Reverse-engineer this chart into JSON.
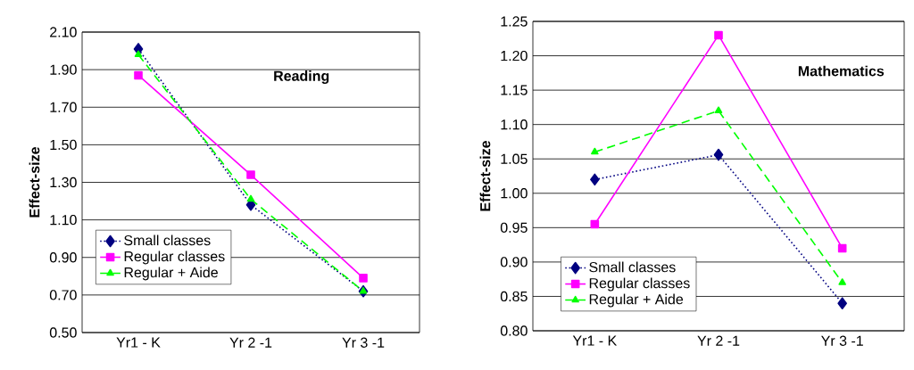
{
  "chart_data": [
    {
      "type": "line",
      "categories": [
        "Yr1 - K",
        "Yr 2 -1",
        "Yr 3 -1"
      ],
      "ylabel": "Effect-size",
      "annotations": [
        "Reading"
      ],
      "series": [
        {
          "name": "Small classes",
          "color": "#000080",
          "values": [
            2.01,
            1.18,
            0.72
          ],
          "marker": "diamond",
          "line_style": "dotted"
        },
        {
          "name": "Regular classes",
          "color": "#ff00ff",
          "values": [
            1.87,
            1.34,
            0.79
          ],
          "marker": "square",
          "line_style": "solid"
        },
        {
          "name": "Regular + Aide",
          "color": "#00ff00",
          "values": [
            1.98,
            1.21,
            0.72
          ],
          "marker": "triangle",
          "line_style": "dashed"
        }
      ],
      "ylim": [
        0.5,
        2.1
      ],
      "yticks": [
        {
          "value": 0.5,
          "label": "0.50"
        },
        {
          "value": 0.7,
          "label": "0.70"
        },
        {
          "value": 0.9,
          "label": "0.90"
        },
        {
          "value": 1.1,
          "label": "1.10"
        },
        {
          "value": 1.3,
          "label": "1.30"
        },
        {
          "value": 1.5,
          "label": "1.50"
        },
        {
          "value": 1.7,
          "label": "1.70"
        },
        {
          "value": 1.9,
          "label": "1.90"
        },
        {
          "value": 2.1,
          "label": "2.10"
        }
      ],
      "grid": "y",
      "legend": "bottom left"
    },
    {
      "type": "line",
      "categories": [
        "Yr1 - K",
        "Yr 2 -1",
        "Yr 3 -1"
      ],
      "ylabel": "Effect-size",
      "annotations": [
        "Mathematics"
      ],
      "series": [
        {
          "name": "Small classes",
          "color": "#000080",
          "values": [
            1.02,
            1.056,
            0.84
          ],
          "marker": "diamond",
          "line_style": "dotted"
        },
        {
          "name": "Regular classes",
          "color": "#ff00ff",
          "values": [
            0.955,
            1.23,
            0.92
          ],
          "marker": "square",
          "line_style": "solid"
        },
        {
          "name": "Regular + Aide",
          "color": "#00ff00",
          "values": [
            1.06,
            1.12,
            0.87
          ],
          "marker": "triangle",
          "line_style": "dashed"
        }
      ],
      "ylim": [
        0.8,
        1.25
      ],
      "yticks": [
        {
          "value": 0.8,
          "label": "0.80"
        },
        {
          "value": 0.85,
          "label": "0.85"
        },
        {
          "value": 0.9,
          "label": "0.90"
        },
        {
          "value": 0.95,
          "label": "0.95"
        },
        {
          "value": 1.0,
          "label": "1.00"
        },
        {
          "value": 1.05,
          "label": "1.05"
        },
        {
          "value": 1.1,
          "label": "1.10"
        },
        {
          "value": 1.15,
          "label": "1.15"
        },
        {
          "value": 1.2,
          "label": "1.20"
        },
        {
          "value": 1.25,
          "label": "1.25"
        }
      ],
      "grid": "y",
      "legend": "bottom left"
    }
  ]
}
